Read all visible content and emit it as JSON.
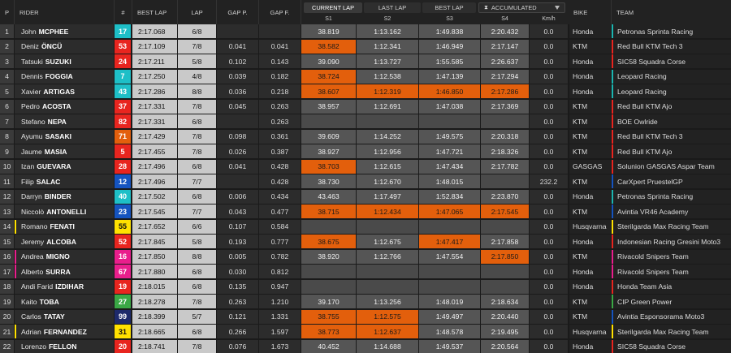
{
  "headers": {
    "p": "P",
    "rider": "RIDER",
    "num": "#",
    "best_lap": "BEST LAP",
    "lap": "LAP",
    "gap_p": "GAP P.",
    "gap_f": "GAP F.",
    "bike": "BIKE",
    "team": "TEAM",
    "s1": "S1",
    "s2": "S2",
    "s3": "S3",
    "s4": "S4",
    "kmh": "Km/h"
  },
  "view_tabs": [
    "CURRENT LAP",
    "LAST LAP",
    "BEST LAP"
  ],
  "active_tab": 0,
  "mode_select": {
    "value": "ACCUMULATED",
    "icon": "split-timing-icon"
  },
  "colors": {
    "orange": "#e35f0c",
    "ktm_red": "#e8251f",
    "honda_teal": "#1bb5b0",
    "yellow": "#ffe100"
  },
  "rows": [
    {
      "p": "1",
      "first": "John",
      "last": "MCPHEE",
      "num": "17",
      "num_bg": "#1ebfc7",
      "num_fg": "#fff",
      "best": "2:17.068",
      "lap": "6/8",
      "gap_p": "",
      "gap_f": "",
      "s": [
        "38.819",
        "1:13.162",
        "1:49.838",
        "2:20.432"
      ],
      "o": [
        0,
        0,
        0,
        0
      ],
      "kmh": "0.0",
      "bike": "Honda",
      "team": "Petronas Sprinta Racing",
      "stripe": "#1bb5b0"
    },
    {
      "p": "2",
      "first": "Deniz",
      "last": "ÖNCÜ",
      "num": "53",
      "num_bg": "#e8251f",
      "num_fg": "#fff",
      "best": "2:17.109",
      "lap": "7/8",
      "gap_p": "0.041",
      "gap_f": "0.041",
      "s": [
        "38.582",
        "1:12.341",
        "1:46.949",
        "2:17.147"
      ],
      "o": [
        1,
        0,
        0,
        0
      ],
      "kmh": "0.0",
      "bike": "KTM",
      "team": "Red Bull KTM Tech 3",
      "stripe": "#e8251f"
    },
    {
      "p": "3",
      "first": "Tatsuki",
      "last": "SUZUKI",
      "num": "24",
      "num_bg": "#e8251f",
      "num_fg": "#fff",
      "best": "2:17.211",
      "lap": "5/8",
      "gap_p": "0.102",
      "gap_f": "0.143",
      "s": [
        "39.090",
        "1:13.727",
        "1:55.585",
        "2:26.637"
      ],
      "o": [
        0,
        0,
        0,
        0
      ],
      "kmh": "0.0",
      "bike": "Honda",
      "team": "SIC58 Squadra Corse",
      "stripe": "#e8251f"
    },
    {
      "p": "4",
      "first": "Dennis",
      "last": "FOGGIA",
      "num": "7",
      "num_bg": "#1ebfc7",
      "num_fg": "#fff",
      "best": "2:17.250",
      "lap": "4/8",
      "gap_p": "0.039",
      "gap_f": "0.182",
      "s": [
        "38.724",
        "1:12.538",
        "1:47.139",
        "2:17.294"
      ],
      "o": [
        1,
        0,
        0,
        0
      ],
      "kmh": "0.0",
      "bike": "Honda",
      "team": "Leopard Racing",
      "stripe": "#1bb5b0"
    },
    {
      "p": "5",
      "first": "Xavier",
      "last": "ARTIGAS",
      "num": "43",
      "num_bg": "#1ebfc7",
      "num_fg": "#fff",
      "best": "2:17.286",
      "lap": "8/8",
      "gap_p": "0.036",
      "gap_f": "0.218",
      "s": [
        "38.607",
        "1:12.319",
        "1:46.850",
        "2:17.286"
      ],
      "o": [
        1,
        1,
        1,
        1
      ],
      "kmh": "0.0",
      "bike": "Honda",
      "team": "Leopard Racing",
      "stripe": "#1bb5b0"
    },
    {
      "p": "6",
      "first": "Pedro",
      "last": "ACOSTA",
      "num": "37",
      "num_bg": "#e8251f",
      "num_fg": "#fff",
      "best": "2:17.331",
      "lap": "7/8",
      "gap_p": "0.045",
      "gap_f": "0.263",
      "s": [
        "38.957",
        "1:12.691",
        "1:47.038",
        "2:17.369"
      ],
      "o": [
        0,
        0,
        0,
        0
      ],
      "kmh": "0.0",
      "bike": "KTM",
      "team": "Red Bull KTM Ajo",
      "stripe": "#e8251f"
    },
    {
      "p": "7",
      "first": "Stefano",
      "last": "NEPA",
      "num": "82",
      "num_bg": "#e8251f",
      "num_fg": "#fff",
      "best": "2:17.331",
      "lap": "6/8",
      "gap_p": "",
      "gap_f": "0.263",
      "s": [
        "",
        "",
        "",
        ""
      ],
      "o": [
        0,
        0,
        0,
        0
      ],
      "kmh": "0.0",
      "bike": "KTM",
      "team": "BOE Owlride",
      "stripe": "#e8251f"
    },
    {
      "p": "8",
      "first": "Ayumu",
      "last": "SASAKI",
      "num": "71",
      "num_bg": "#e35f0c",
      "num_fg": "#fff",
      "best": "2:17.429",
      "lap": "7/8",
      "gap_p": "0.098",
      "gap_f": "0.361",
      "s": [
        "39.609",
        "1:14.252",
        "1:49.575",
        "2:20.318"
      ],
      "o": [
        0,
        0,
        0,
        0
      ],
      "kmh": "0.0",
      "bike": "KTM",
      "team": "Red Bull KTM Tech 3",
      "stripe": "#e8251f"
    },
    {
      "p": "9",
      "first": "Jaume",
      "last": "MASIA",
      "num": "5",
      "num_bg": "#e8251f",
      "num_fg": "#fff",
      "best": "2:17.455",
      "lap": "7/8",
      "gap_p": "0.026",
      "gap_f": "0.387",
      "s": [
        "38.927",
        "1:12.956",
        "1:47.721",
        "2:18.326"
      ],
      "o": [
        0,
        0,
        0,
        0
      ],
      "kmh": "0.0",
      "bike": "KTM",
      "team": "Red Bull KTM Ajo",
      "stripe": "#e8251f"
    },
    {
      "p": "10",
      "first": "Izan",
      "last": "GUEVARA",
      "num": "28",
      "num_bg": "#e8251f",
      "num_fg": "#fff",
      "best": "2:17.496",
      "lap": "6/8",
      "gap_p": "0.041",
      "gap_f": "0.428",
      "s": [
        "38.703",
        "1:12.615",
        "1:47.434",
        "2:17.782"
      ],
      "o": [
        1,
        0,
        0,
        0
      ],
      "kmh": "0.0",
      "bike": "GASGAS",
      "team": "Solunion GASGAS Aspar Team",
      "stripe": "#e8251f"
    },
    {
      "p": "11",
      "first": "Filip",
      "last": "SALAC",
      "num": "12",
      "num_bg": "#1554c0",
      "num_fg": "#fff",
      "best": "2:17.496",
      "lap": "7/7",
      "gap_p": "",
      "gap_f": "0.428",
      "s": [
        "38.730",
        "1:12.670",
        "1:48.015",
        ""
      ],
      "o": [
        0,
        0,
        0,
        0
      ],
      "kmh": "232.2",
      "bike": "KTM",
      "team": "CarXpert PruestelGP",
      "stripe": "#1554c0"
    },
    {
      "p": "12",
      "first": "Darryn",
      "last": "BINDER",
      "num": "40",
      "num_bg": "#1ebfc7",
      "num_fg": "#fff",
      "best": "2:17.502",
      "lap": "6/8",
      "gap_p": "0.006",
      "gap_f": "0.434",
      "s": [
        "43.463",
        "1:17.497",
        "1:52.834",
        "2:23.870"
      ],
      "o": [
        0,
        0,
        0,
        0
      ],
      "kmh": "0.0",
      "bike": "Honda",
      "team": "Petronas Sprinta Racing",
      "stripe": "#1bb5b0"
    },
    {
      "p": "13",
      "first": "Niccolò",
      "last": "ANTONELLI",
      "num": "23",
      "num_bg": "#1554c0",
      "num_fg": "#fff",
      "best": "2:17.545",
      "lap": "7/7",
      "gap_p": "0.043",
      "gap_f": "0.477",
      "s": [
        "38.715",
        "1:12.434",
        "1:47.065",
        "2:17.545"
      ],
      "o": [
        1,
        1,
        1,
        1
      ],
      "kmh": "0.0",
      "bike": "KTM",
      "team": "Avintia VR46 Academy",
      "stripe": "#1554c0"
    },
    {
      "p": "14",
      "first": "Romano",
      "last": "FENATI",
      "num": "55",
      "num_bg": "#ffe100",
      "num_fg": "#111",
      "best": "2:17.652",
      "lap": "6/6",
      "gap_p": "0.107",
      "gap_f": "0.584",
      "s": [
        "",
        "",
        "",
        ""
      ],
      "o": [
        0,
        0,
        0,
        0
      ],
      "kmh": "0.0",
      "bike": "Husqvarna",
      "team": "Sterilgarda Max Racing Team",
      "stripe": "#ffe100",
      "rider_stripe": "#ffe100"
    },
    {
      "p": "15",
      "first": "Jeremy",
      "last": "ALCOBA",
      "num": "52",
      "num_bg": "#e8251f",
      "num_fg": "#fff",
      "best": "2:17.845",
      "lap": "5/8",
      "gap_p": "0.193",
      "gap_f": "0.777",
      "s": [
        "38.675",
        "1:12.675",
        "1:47.417",
        "2:17.858"
      ],
      "o": [
        1,
        0,
        1,
        0
      ],
      "kmh": "0.0",
      "bike": "Honda",
      "team": "Indonesian Racing Gresini Moto3",
      "stripe": "#e8251f"
    },
    {
      "p": "16",
      "first": "Andrea",
      "last": "MIGNO",
      "num": "16",
      "num_bg": "#e91e8c",
      "num_fg": "#fff",
      "best": "2:17.850",
      "lap": "8/8",
      "gap_p": "0.005",
      "gap_f": "0.782",
      "s": [
        "38.920",
        "1:12.766",
        "1:47.554",
        "2:17.850"
      ],
      "o": [
        0,
        0,
        0,
        1
      ],
      "kmh": "0.0",
      "bike": "KTM",
      "team": "Rivacold Snipers Team",
      "stripe": "#e91e8c",
      "rider_stripe": "#e91e8c"
    },
    {
      "p": "17",
      "first": "Alberto",
      "last": "SURRA",
      "num": "67",
      "num_bg": "#e91e8c",
      "num_fg": "#fff",
      "best": "2:17.880",
      "lap": "6/8",
      "gap_p": "0.030",
      "gap_f": "0.812",
      "s": [
        "",
        "",
        "",
        ""
      ],
      "o": [
        0,
        0,
        0,
        0
      ],
      "kmh": "0.0",
      "bike": "Honda",
      "team": "Rivacold Snipers Team",
      "stripe": "#e91e8c",
      "rider_stripe": "#e91e8c"
    },
    {
      "p": "18",
      "first": "Andi Farid",
      "last": "IZDIHAR",
      "num": "19",
      "num_bg": "#e8251f",
      "num_fg": "#fff",
      "best": "2:18.015",
      "lap": "6/8",
      "gap_p": "0.135",
      "gap_f": "0.947",
      "s": [
        "",
        "",
        "",
        ""
      ],
      "o": [
        0,
        0,
        0,
        0
      ],
      "kmh": "0.0",
      "bike": "Honda",
      "team": "Honda Team Asia",
      "stripe": "#e8251f"
    },
    {
      "p": "19",
      "first": "Kaito",
      "last": "TOBA",
      "num": "27",
      "num_bg": "#3aa845",
      "num_fg": "#fff",
      "best": "2:18.278",
      "lap": "7/8",
      "gap_p": "0.263",
      "gap_f": "1.210",
      "s": [
        "39.170",
        "1:13.256",
        "1:48.019",
        "2:18.634"
      ],
      "o": [
        0,
        0,
        0,
        0
      ],
      "kmh": "0.0",
      "bike": "KTM",
      "team": "CIP Green Power",
      "stripe": "#3aa845"
    },
    {
      "p": "20",
      "first": "Carlos",
      "last": "TATAY",
      "num": "99",
      "num_bg": "#1e2a6b",
      "num_fg": "#fff",
      "best": "2:18.399",
      "lap": "5/7",
      "gap_p": "0.121",
      "gap_f": "1.331",
      "s": [
        "38.755",
        "1:12.575",
        "1:49.497",
        "2:20.440"
      ],
      "o": [
        1,
        1,
        0,
        0
      ],
      "kmh": "0.0",
      "bike": "KTM",
      "team": "Avintia Esponsorama Moto3",
      "stripe": "#1554c0"
    },
    {
      "p": "21",
      "first": "Adrian",
      "last": "FERNANDEZ",
      "num": "31",
      "num_bg": "#ffe100",
      "num_fg": "#111",
      "best": "2:18.665",
      "lap": "6/8",
      "gap_p": "0.266",
      "gap_f": "1.597",
      "s": [
        "38.773",
        "1:12.637",
        "1:48.578",
        "2:19.495"
      ],
      "o": [
        1,
        1,
        0,
        0
      ],
      "kmh": "0.0",
      "bike": "Husqvarna",
      "team": "Sterilgarda Max Racing Team",
      "stripe": "#ffe100",
      "rider_stripe": "#ffe100"
    },
    {
      "p": "22",
      "first": "Lorenzo",
      "last": "FELLON",
      "num": "20",
      "num_bg": "#e8251f",
      "num_fg": "#fff",
      "best": "2:18.741",
      "lap": "7/8",
      "gap_p": "0.076",
      "gap_f": "1.673",
      "s": [
        "40.452",
        "1:14.688",
        "1:49.537",
        "2:20.564"
      ],
      "o": [
        0,
        0,
        0,
        0
      ],
      "kmh": "0.0",
      "bike": "Honda",
      "team": "SIC58 Squadra Corse",
      "stripe": "#e8251f"
    }
  ]
}
